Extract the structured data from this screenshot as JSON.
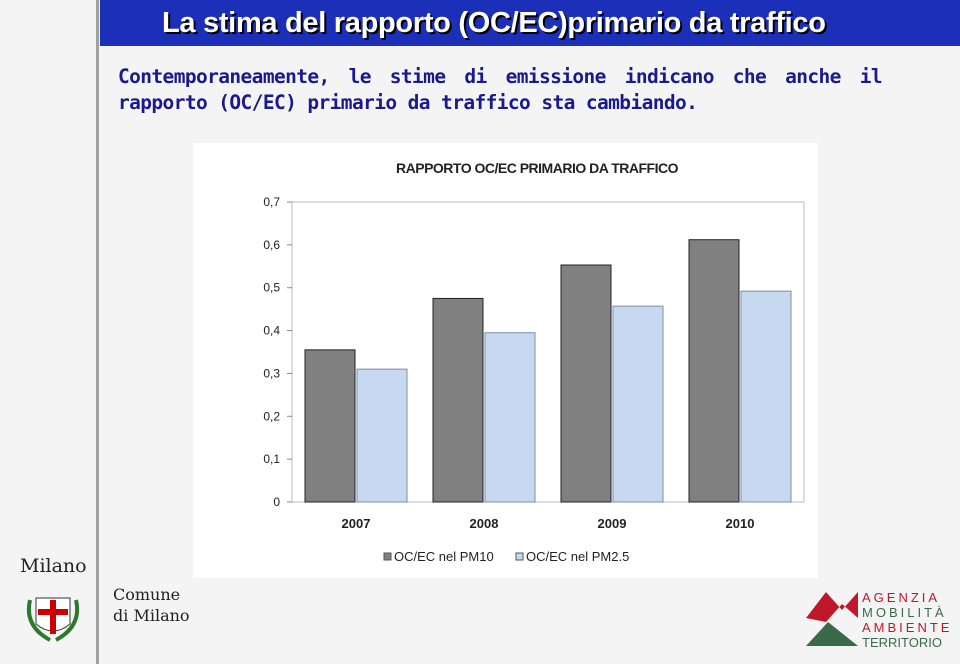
{
  "header": {
    "title": "La stima del rapporto (OC/EC)primario da traffico"
  },
  "body": {
    "text": "Contemporaneamente, le stime di emissione indicano che anche il rapporto (OC/EC) primario da traffico sta cambiando."
  },
  "chart_data": {
    "type": "bar",
    "title": "RAPPORTO OC/EC PRIMARIO DA TRAFFICO",
    "categories": [
      "2007",
      "2008",
      "2009",
      "2010"
    ],
    "series": [
      {
        "name": "OC/EC nel PM10",
        "color": "#808080",
        "values": [
          0.355,
          0.475,
          0.553,
          0.612
        ]
      },
      {
        "name": "OC/EC nel PM2.5",
        "color": "#c6d9f1",
        "values": [
          0.31,
          0.395,
          0.457,
          0.492
        ]
      }
    ],
    "ylim": [
      0,
      0.7
    ],
    "yticks": [
      0,
      {
        "value": 0.1,
        "label": "0,1"
      },
      {
        "value": 0.2,
        "label": "0,2"
      },
      {
        "value": 0.3,
        "label": "0,3"
      },
      {
        "value": 0.4,
        "label": "0,4"
      },
      {
        "value": 0.5,
        "label": "0,5"
      },
      {
        "value": 0.6,
        "label": "0,6"
      },
      {
        "value": 0.7,
        "label": "0,7"
      }
    ],
    "grid": false,
    "legend": "bottom"
  },
  "logos": {
    "city": "Milano",
    "comune_1": "Comune",
    "comune_2": "di Milano",
    "agency": [
      "AGENZIA",
      "MOBILITÀ",
      "AMBIENTE",
      "TERRITORIO"
    ]
  }
}
